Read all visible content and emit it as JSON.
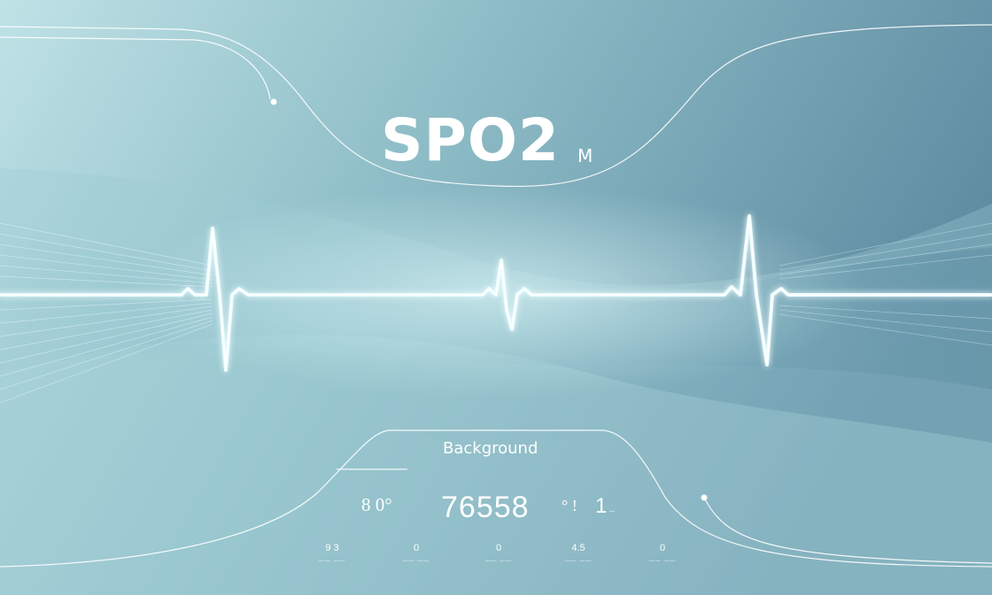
{
  "header": {
    "title": "SPO2",
    "title_suffix": "M"
  },
  "panel": {
    "label": "Background",
    "readout_left": "8 0°",
    "readout_main": "76558",
    "readout_right_a": "° !",
    "readout_right_b": "1",
    "readout_right_c": "—"
  },
  "stats": [
    {
      "value": "9 3",
      "label": "—— ——"
    },
    {
      "value": "0",
      "label": "—— ——"
    },
    {
      "value": "0",
      "label": "—— ——"
    },
    {
      "value": "4.5",
      "label": "—— ——"
    },
    {
      "value": "0",
      "label": "—— ——"
    }
  ],
  "colors": {
    "background_light": "#b8dde2",
    "background_mid": "#86b6c2",
    "background_dark": "#5e8ba0",
    "waveform_glow": "#dffcff",
    "text": "#ffffff"
  },
  "icons": [
    "ecg-waveform-icon"
  ]
}
